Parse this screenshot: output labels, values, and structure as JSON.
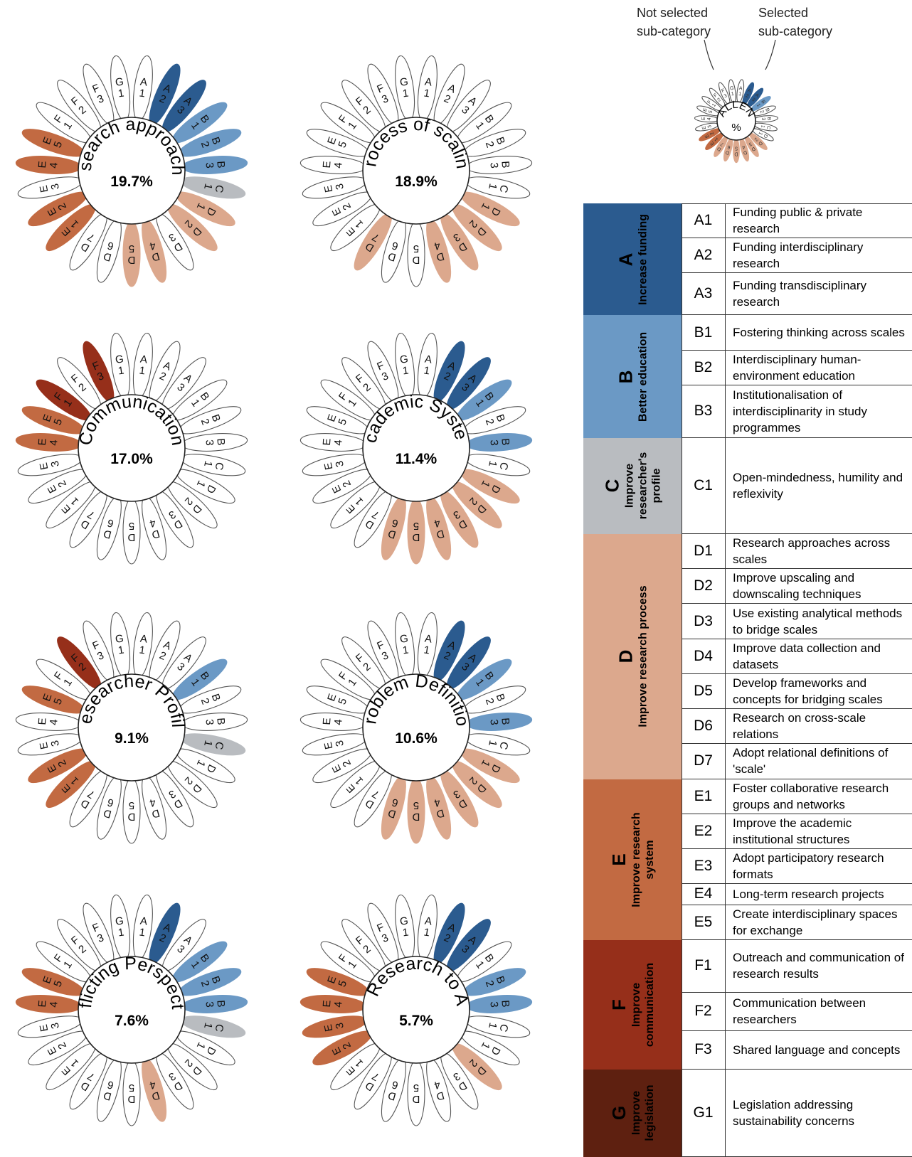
{
  "legend": {
    "not_selected_note": [
      "Not selected",
      "sub-category"
    ],
    "selected_note": [
      "Selected",
      "sub-category"
    ],
    "center_title": "CHALLENGE",
    "center_value": "%"
  },
  "subcategory_order": [
    "A1",
    "A2",
    "A3",
    "B1",
    "B2",
    "B3",
    "C1",
    "D1",
    "D2",
    "D3",
    "D4",
    "D5",
    "D6",
    "D7",
    "E1",
    "E2",
    "E3",
    "E4",
    "E5",
    "F1",
    "F2",
    "F3",
    "G1"
  ],
  "colors": {
    "A": "#2b5b8f",
    "B": "#6b99c5",
    "C": "#b9bcc0",
    "D": "#dca88d",
    "E": "#c26a42",
    "F": "#962f1a",
    "G": "#5e2010",
    "unselected_fill": "#ffffff",
    "outline": "#555555"
  },
  "challenges": [
    {
      "title": "Research approaches",
      "percent": "19.7%",
      "selected": [
        "A2",
        "A3",
        "B1",
        "B2",
        "B3",
        "C1",
        "D1",
        "D2",
        "D4",
        "D5",
        "E1",
        "E2",
        "E4",
        "E5"
      ]
    },
    {
      "title": "Process of scaling",
      "percent": "18.9%",
      "selected": [
        "D1",
        "D2",
        "D3",
        "D4",
        "D7"
      ]
    },
    {
      "title": "Communication",
      "percent": "17.0%",
      "selected": [
        "E4",
        "E5",
        "F1",
        "F3"
      ]
    },
    {
      "title": "Academic System",
      "percent": "11.4%",
      "selected": [
        "A2",
        "A3",
        "B1",
        "B3",
        "D1",
        "D2",
        "D3",
        "D4",
        "D5",
        "D6"
      ]
    },
    {
      "title": "Researcher Profile",
      "percent": "9.1%",
      "selected": [
        "B1",
        "C1",
        "E1",
        "E2",
        "E5",
        "F2"
      ]
    },
    {
      "title": "Problem Definition",
      "percent": "10.6%",
      "selected": [
        "A2",
        "A3",
        "B1",
        "B3",
        "D1",
        "D2",
        "D3",
        "D4",
        "D5",
        "D6"
      ]
    },
    {
      "title": "Conflicting Perspectives",
      "percent": "7.6%",
      "selected": [
        "A2",
        "B1",
        "B2",
        "B3",
        "C1",
        "D4",
        "E4",
        "E5"
      ]
    },
    {
      "title": "From Research to Action",
      "percent": "5.7%",
      "selected": [
        "A2",
        "A3",
        "B2",
        "B3",
        "D2",
        "E2",
        "E3",
        "E4",
        "E5"
      ]
    }
  ],
  "categories": [
    {
      "letter": "A",
      "name_lines": [
        "Increase funding"
      ],
      "subs": [
        {
          "code": "A1",
          "text": "Funding public & private research"
        },
        {
          "code": "A2",
          "text": "Funding interdisciplinary research"
        },
        {
          "code": "A3",
          "text": "Funding transdisciplinary research"
        }
      ]
    },
    {
      "letter": "B",
      "name_lines": [
        "Better education"
      ],
      "subs": [
        {
          "code": "B1",
          "text": "Fostering thinking across scales"
        },
        {
          "code": "B2",
          "text": "Interdisciplinary human-environment education"
        },
        {
          "code": "B3",
          "text": "Institutionalisation of interdisciplinarity in study programmes"
        }
      ]
    },
    {
      "letter": "C",
      "name_lines": [
        "Improve",
        "researcher's",
        "profile"
      ],
      "subs": [
        {
          "code": "C1",
          "text": "Open-mindedness, humility and reflexivity"
        }
      ]
    },
    {
      "letter": "D",
      "name_lines": [
        "Improve research process"
      ],
      "subs": [
        {
          "code": "D1",
          "text": "Research approaches across scales"
        },
        {
          "code": "D2",
          "text": "Improve upscaling and downscaling techniques"
        },
        {
          "code": "D3",
          "text": "Use existing analytical methods to bridge scales"
        },
        {
          "code": "D4",
          "text": "Improve data collection and datasets"
        },
        {
          "code": "D5",
          "text": "Develop frameworks and concepts for bridging scales"
        },
        {
          "code": "D6",
          "text": "Research on cross-scale relations"
        },
        {
          "code": "D7",
          "text": "Adopt relational definitions of 'scale'"
        }
      ]
    },
    {
      "letter": "E",
      "name_lines": [
        "Improve research",
        "system"
      ],
      "subs": [
        {
          "code": "E1",
          "text": "Foster collaborative research groups and networks"
        },
        {
          "code": "E2",
          "text": "Improve the academic institutional structures"
        },
        {
          "code": "E3",
          "text": "Adopt participatory research formats"
        },
        {
          "code": "E4",
          "text": "Long-term research projects"
        },
        {
          "code": "E5",
          "text": "Create interdisciplinary spaces for exchange"
        }
      ]
    },
    {
      "letter": "F",
      "name_lines": [
        "Improve",
        "communication"
      ],
      "subs": [
        {
          "code": "F1",
          "text": "Outreach and communication of research results"
        },
        {
          "code": "F2",
          "text": "Communication between researchers"
        },
        {
          "code": "F3",
          "text": "Shared language and concepts"
        }
      ]
    },
    {
      "letter": "G",
      "name_lines": [
        "Improve",
        "legislation"
      ],
      "subs": [
        {
          "code": "G1",
          "text": "Legislation addressing sustainability concerns"
        }
      ]
    }
  ]
}
